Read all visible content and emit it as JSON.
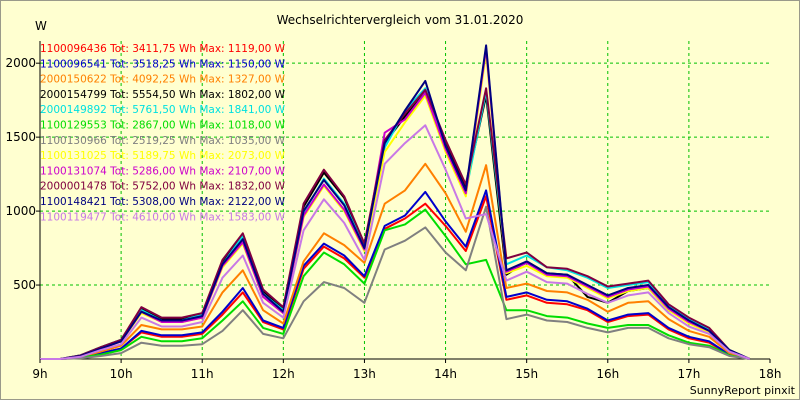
{
  "chart_data": {
    "type": "line",
    "title": "Wechselrichtervergleich vom 31.01.2020",
    "ylabel": "W",
    "xlabel": "",
    "footer": "SunnyReport pinxit",
    "grid": true,
    "legend_position": "top-left",
    "xlim": [
      9,
      18
    ],
    "ylim": [
      0,
      2150
    ],
    "xticks": [
      9,
      10,
      11,
      12,
      13,
      14,
      15,
      16,
      17,
      18
    ],
    "xtick_labels": [
      "9h",
      "10h",
      "11h",
      "12h",
      "13h",
      "14h",
      "15h",
      "16h",
      "17h",
      "18h"
    ],
    "yticks": [
      500,
      1000,
      1500,
      2000
    ],
    "ytick_labels": [
      "500",
      "1000",
      "1500",
      "2000"
    ],
    "x": [
      9.0,
      9.25,
      9.5,
      9.75,
      10.0,
      10.25,
      10.5,
      10.75,
      11.0,
      11.25,
      11.5,
      11.75,
      12.0,
      12.25,
      12.5,
      12.75,
      13.0,
      13.25,
      13.5,
      13.75,
      14.0,
      14.25,
      14.5,
      14.75,
      15.0,
      15.25,
      15.5,
      15.75,
      16.0,
      16.25,
      16.5,
      16.75,
      17.0,
      17.25,
      17.5,
      17.75
    ],
    "series": [
      {
        "name": "1100096436",
        "label": "1100096436 Tot: 3411,75 Wh Max: 1119,00 W",
        "color": "#ff0000",
        "values": [
          0,
          0,
          10,
          40,
          70,
          180,
          150,
          150,
          170,
          300,
          450,
          250,
          200,
          610,
          760,
          680,
          550,
          880,
          950,
          1050,
          900,
          730,
          1100,
          400,
          430,
          380,
          370,
          330,
          250,
          290,
          300,
          200,
          140,
          110,
          30,
          0
        ]
      },
      {
        "name": "1100096541",
        "label": "1100096541 Tot: 3518,25 Wh Max: 1150,00 W",
        "color": "#0000cc",
        "values": [
          0,
          0,
          10,
          40,
          70,
          190,
          160,
          160,
          180,
          320,
          480,
          260,
          210,
          630,
          780,
          700,
          560,
          900,
          970,
          1130,
          930,
          760,
          1140,
          420,
          450,
          400,
          390,
          340,
          260,
          300,
          310,
          210,
          150,
          120,
          30,
          0
        ]
      },
      {
        "name": "2000150622",
        "label": "2000150622 Tot: 4092,25 Wh Max: 1327,00 W",
        "color": "#ff8000",
        "values": [
          0,
          0,
          15,
          50,
          90,
          230,
          200,
          200,
          220,
          450,
          600,
          330,
          240,
          660,
          850,
          770,
          650,
          1050,
          1140,
          1320,
          1120,
          860,
          1310,
          480,
          510,
          460,
          450,
          400,
          320,
          380,
          390,
          270,
          190,
          150,
          40,
          0
        ]
      },
      {
        "name": "2000154799",
        "label": "2000154799 Tot: 5554,50 Wh Max: 1802,00 W",
        "color": "#000000",
        "values": [
          0,
          0,
          25,
          80,
          130,
          340,
          270,
          270,
          300,
          660,
          830,
          460,
          340,
          1030,
          1260,
          1090,
          770,
          1460,
          1640,
          1800,
          1460,
          1160,
          1780,
          570,
          660,
          580,
          570,
          420,
          380,
          460,
          480,
          330,
          250,
          190,
          60,
          0
        ]
      },
      {
        "name": "2000149892",
        "label": "2000149892 Tot: 5761,50 Wh Max: 1841,00 W",
        "color": "#00e0e0",
        "values": [
          0,
          0,
          25,
          80,
          130,
          330,
          260,
          260,
          300,
          640,
          830,
          440,
          330,
          990,
          1220,
          1050,
          760,
          1430,
          1680,
          1830,
          1440,
          1130,
          1810,
          640,
          700,
          620,
          600,
          550,
          480,
          500,
          520,
          360,
          270,
          200,
          60,
          0
        ]
      },
      {
        "name": "1100129553",
        "label": "1100129553 Tot: 2867,00 Wh Max: 1018,00 W",
        "color": "#00dd00",
        "values": [
          0,
          0,
          10,
          30,
          60,
          150,
          120,
          120,
          140,
          260,
          390,
          210,
          170,
          560,
          720,
          640,
          510,
          870,
          910,
          1010,
          830,
          640,
          670,
          330,
          330,
          290,
          280,
          240,
          210,
          230,
          230,
          160,
          110,
          90,
          25,
          0
        ]
      },
      {
        "name": "1100130966",
        "label": "1100130966 Tot: 2519,25 Wh Max: 1035,00 W",
        "color": "#808080",
        "values": [
          0,
          0,
          5,
          20,
          40,
          110,
          90,
          90,
          100,
          190,
          330,
          170,
          140,
          390,
          520,
          480,
          380,
          740,
          800,
          890,
          720,
          600,
          1030,
          270,
          300,
          260,
          250,
          210,
          180,
          210,
          210,
          140,
          100,
          80,
          20,
          0
        ]
      },
      {
        "name": "1100131025",
        "label": "1100131025 Tot: 5189,75 Wh Max: 2073,00 W",
        "color": "#ffff00",
        "values": [
          0,
          0,
          20,
          70,
          120,
          310,
          250,
          250,
          280,
          620,
          780,
          420,
          310,
          960,
          1170,
          1000,
          730,
          1400,
          1600,
          1780,
          1400,
          1100,
          2070,
          580,
          630,
          560,
          550,
          480,
          410,
          460,
          480,
          330,
          240,
          180,
          55,
          0
        ]
      },
      {
        "name": "1100131074",
        "label": "1100131074 Tot: 5286,00 Wh Max: 2107,00 W",
        "color": "#cc00cc",
        "values": [
          0,
          0,
          20,
          70,
          120,
          320,
          250,
          250,
          280,
          630,
          790,
          420,
          310,
          970,
          1180,
          1010,
          740,
          1530,
          1620,
          1800,
          1420,
          1120,
          2100,
          590,
          650,
          570,
          560,
          490,
          420,
          470,
          490,
          340,
          250,
          190,
          55,
          0
        ]
      },
      {
        "name": "2000001478",
        "label": "2000001478 Tot: 5752,00 Wh Max: 1832,00 W",
        "color": "#800040",
        "values": [
          0,
          0,
          25,
          80,
          130,
          350,
          280,
          280,
          310,
          670,
          850,
          470,
          350,
          1050,
          1280,
          1100,
          780,
          1480,
          1660,
          1820,
          1480,
          1180,
          1830,
          680,
          720,
          620,
          610,
          560,
          490,
          510,
          530,
          370,
          280,
          210,
          60,
          0
        ]
      },
      {
        "name": "1100148421",
        "label": "1100148421 Tot: 5308,00 Wh Max: 2122,00 W",
        "color": "#000080",
        "values": [
          0,
          0,
          20,
          70,
          120,
          320,
          260,
          260,
          290,
          640,
          810,
          440,
          320,
          1000,
          1210,
          1040,
          750,
          1460,
          1680,
          1880,
          1440,
          1140,
          2120,
          600,
          660,
          580,
          570,
          500,
          430,
          480,
          500,
          350,
          260,
          190,
          60,
          0
        ]
      },
      {
        "name": "1100119477",
        "label": "1100119477 Tot: 4610,00 Wh Max: 1583,00 W",
        "color": "#c878e6",
        "values": [
          0,
          0,
          15,
          60,
          100,
          280,
          220,
          220,
          250,
          550,
          700,
          380,
          280,
          870,
          1080,
          920,
          670,
          1320,
          1460,
          1580,
          1280,
          950,
          980,
          530,
          590,
          520,
          510,
          440,
          380,
          430,
          450,
          310,
          220,
          170,
          50,
          0
        ]
      }
    ]
  }
}
